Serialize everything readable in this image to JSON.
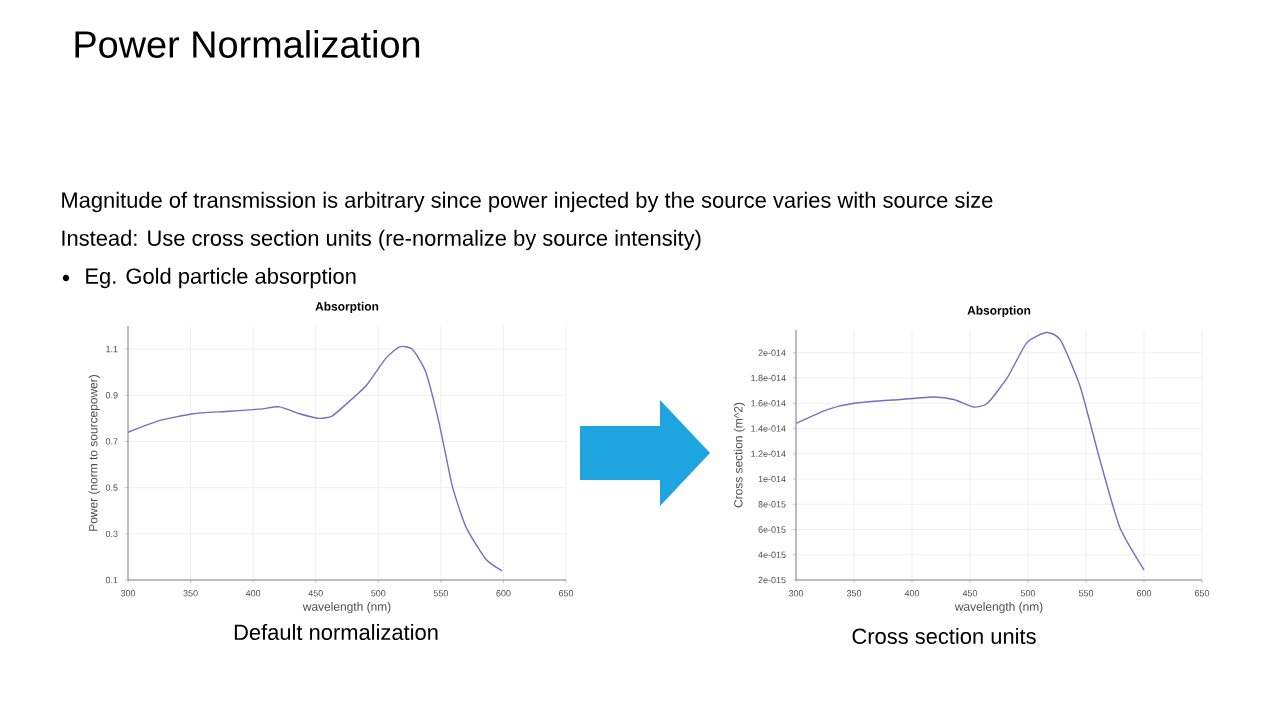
{
  "chart_data": [
    {
      "type": "line",
      "title": "Absorption",
      "xlabel": "wavelength (nm)",
      "ylabel": "Power (norm to sourcepower)",
      "color": "#7070c0",
      "grid": true,
      "x": [
        300,
        325,
        352,
        378,
        405,
        421,
        437,
        453,
        463,
        474,
        490,
        506,
        517,
        527,
        538,
        549,
        559,
        570,
        586,
        599
      ],
      "values": [
        0.74,
        0.79,
        0.82,
        0.83,
        0.84,
        0.85,
        0.82,
        0.8,
        0.81,
        0.86,
        0.94,
        1.06,
        1.11,
        1.1,
        1.0,
        0.77,
        0.51,
        0.33,
        0.19,
        0.14
      ],
      "xlim": [
        300,
        650
      ],
      "ylim": [
        0.1,
        1.2
      ],
      "xticks": [
        300,
        350,
        400,
        450,
        500,
        550,
        600,
        650
      ],
      "yticks": [
        0.1,
        0.3,
        0.5,
        0.7,
        0.9,
        1.1
      ],
      "annotations": [
        "Power Normalization",
        "Magnitude of transmission is arbitrary since power injected by the source varies with source size",
        "Instead: Use cross section units (re-normalize by source intensity)",
        "Eg. Gold particle absorption",
        "Default normalization"
      ]
    },
    {
      "type": "line",
      "title": "Absorption",
      "xlabel": "wavelength (nm)",
      "ylabel": "Cross section (m^2)",
      "color": "#7070c0",
      "grid": true,
      "x": [
        300,
        327,
        350,
        390,
        419,
        436,
        453,
        465,
        482,
        499,
        516,
        528,
        545,
        562,
        579,
        600
      ],
      "values": [
        1.44e-14,
        1.55e-14,
        1.6e-14,
        1.63e-14,
        1.65e-14,
        1.63e-14,
        1.57e-14,
        1.6e-14,
        1.8e-14,
        2.08e-14,
        2.16e-14,
        2.1e-14,
        1.73e-14,
        1.15e-14,
        6.2e-15,
        2.8e-15
      ],
      "xlim": [
        300,
        650
      ],
      "ylim": [
        2e-15,
        2.18e-14
      ],
      "xticks": [
        300,
        350,
        400,
        450,
        500,
        550,
        600,
        650
      ],
      "yticks": [
        {
          "value": 2e-15,
          "label": "2e-015"
        },
        {
          "value": 4e-15,
          "label": "4e-015"
        },
        {
          "value": 6e-15,
          "label": "6e-015"
        },
        {
          "value": 8e-15,
          "label": "8e-015"
        },
        {
          "value": 1e-14,
          "label": "1e-014"
        },
        {
          "value": 1.2e-14,
          "label": "1.2e-014"
        },
        {
          "value": 1.4e-14,
          "label": "1.4e-014"
        },
        {
          "value": 1.6e-14,
          "label": "1.6e-014"
        },
        {
          "value": 1.8e-14,
          "label": "1.8e-014"
        },
        {
          "value": 2e-14,
          "label": "2e-014"
        }
      ],
      "annotations": [
        "Cross section units"
      ]
    }
  ]
}
